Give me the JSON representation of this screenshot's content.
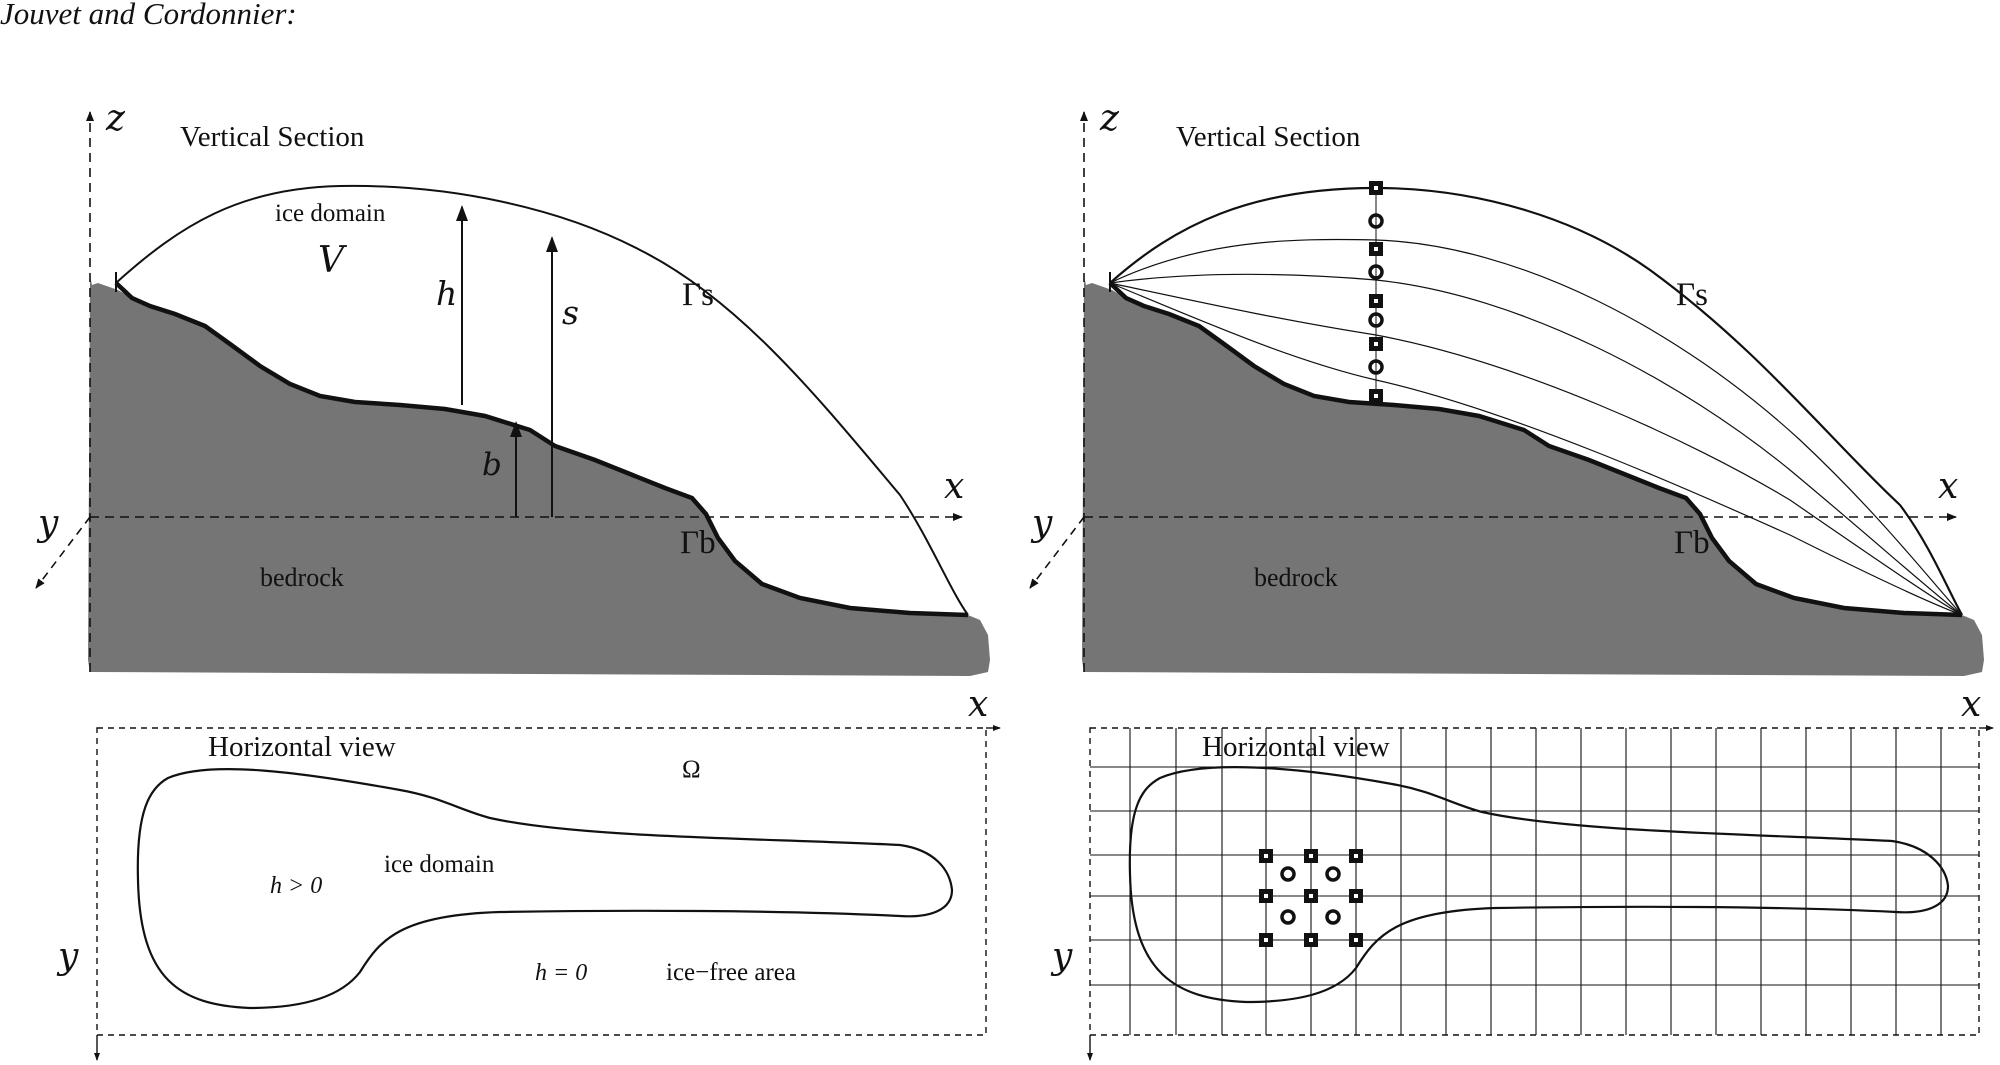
{
  "header": "Jouvet and Cordonnier:",
  "left_panel": {
    "vertical": {
      "title": "Vertical Section",
      "ice_domain": "ice domain",
      "volume": "V",
      "h": "h",
      "s": "s",
      "b": "b",
      "gamma_s": "Γs",
      "gamma_b": "Γb",
      "bedrock": "bedrock",
      "axis_z": "z",
      "axis_x": "x",
      "axis_y": "y"
    },
    "horizontal": {
      "title": "Horizontal view",
      "omega": "Ω",
      "ice_domain": "ice domain",
      "h_pos": "h > 0",
      "h_zero": "h = 0",
      "ice_free": "ice−free area",
      "axis_x": "x",
      "axis_y": "y"
    }
  },
  "right_panel": {
    "vertical": {
      "title": "Vertical Section",
      "gamma_s": "Γs",
      "gamma_b": "Γb",
      "bedrock": "bedrock",
      "axis_z": "z",
      "axis_x": "x",
      "axis_y": "y"
    },
    "horizontal": {
      "title": "Horizontal view",
      "axis_x": "x",
      "axis_y": "y"
    }
  }
}
